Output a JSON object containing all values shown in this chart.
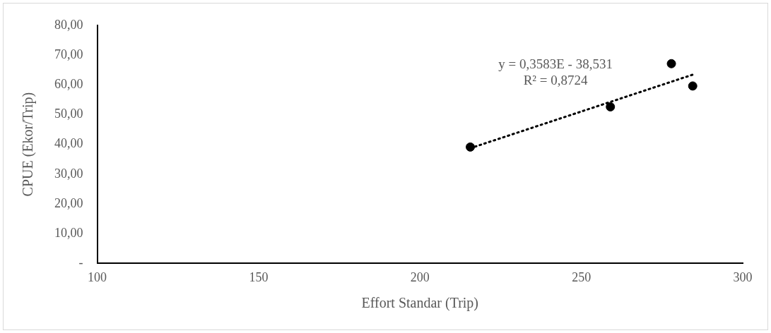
{
  "chart_data": {
    "type": "scatter",
    "xlabel": "Effort Standar (Trip)",
    "ylabel": "CPUE (Ekor/Trip)",
    "annotations": [
      "y = 0,3583E - 38,531",
      "R² = 0,8724"
    ],
    "xlim": [
      100,
      300
    ],
    "xticks": [
      100,
      150,
      200,
      250,
      300
    ],
    "ylim": [
      0,
      80
    ],
    "yticks": [
      {
        "value": 0,
        "label": "-"
      },
      {
        "value": 10,
        "label": "10,00"
      },
      {
        "value": 20,
        "label": "20,00"
      },
      {
        "value": 30,
        "label": "30,00"
      },
      {
        "value": 40,
        "label": "40,00"
      },
      {
        "value": 50,
        "label": "50,00"
      },
      {
        "value": 60,
        "label": "60,00"
      },
      {
        "value": 70,
        "label": "70,00"
      },
      {
        "value": 80,
        "label": "80,00"
      }
    ],
    "grid": false,
    "legend": false,
    "marker": "circle",
    "series": [
      {
        "type": "scatter",
        "color": "#000000",
        "x": [
          215.6,
          259.0,
          277.9,
          284.5
        ],
        "values": [
          39.1,
          52.6,
          67.1,
          59.6
        ]
      },
      {
        "type": "line",
        "color": "#000000",
        "line_style": "dotted",
        "marker": "none",
        "x": [
          215.6,
          284.5
        ],
        "values": [
          38.7,
          63.4
        ]
      }
    ]
  }
}
